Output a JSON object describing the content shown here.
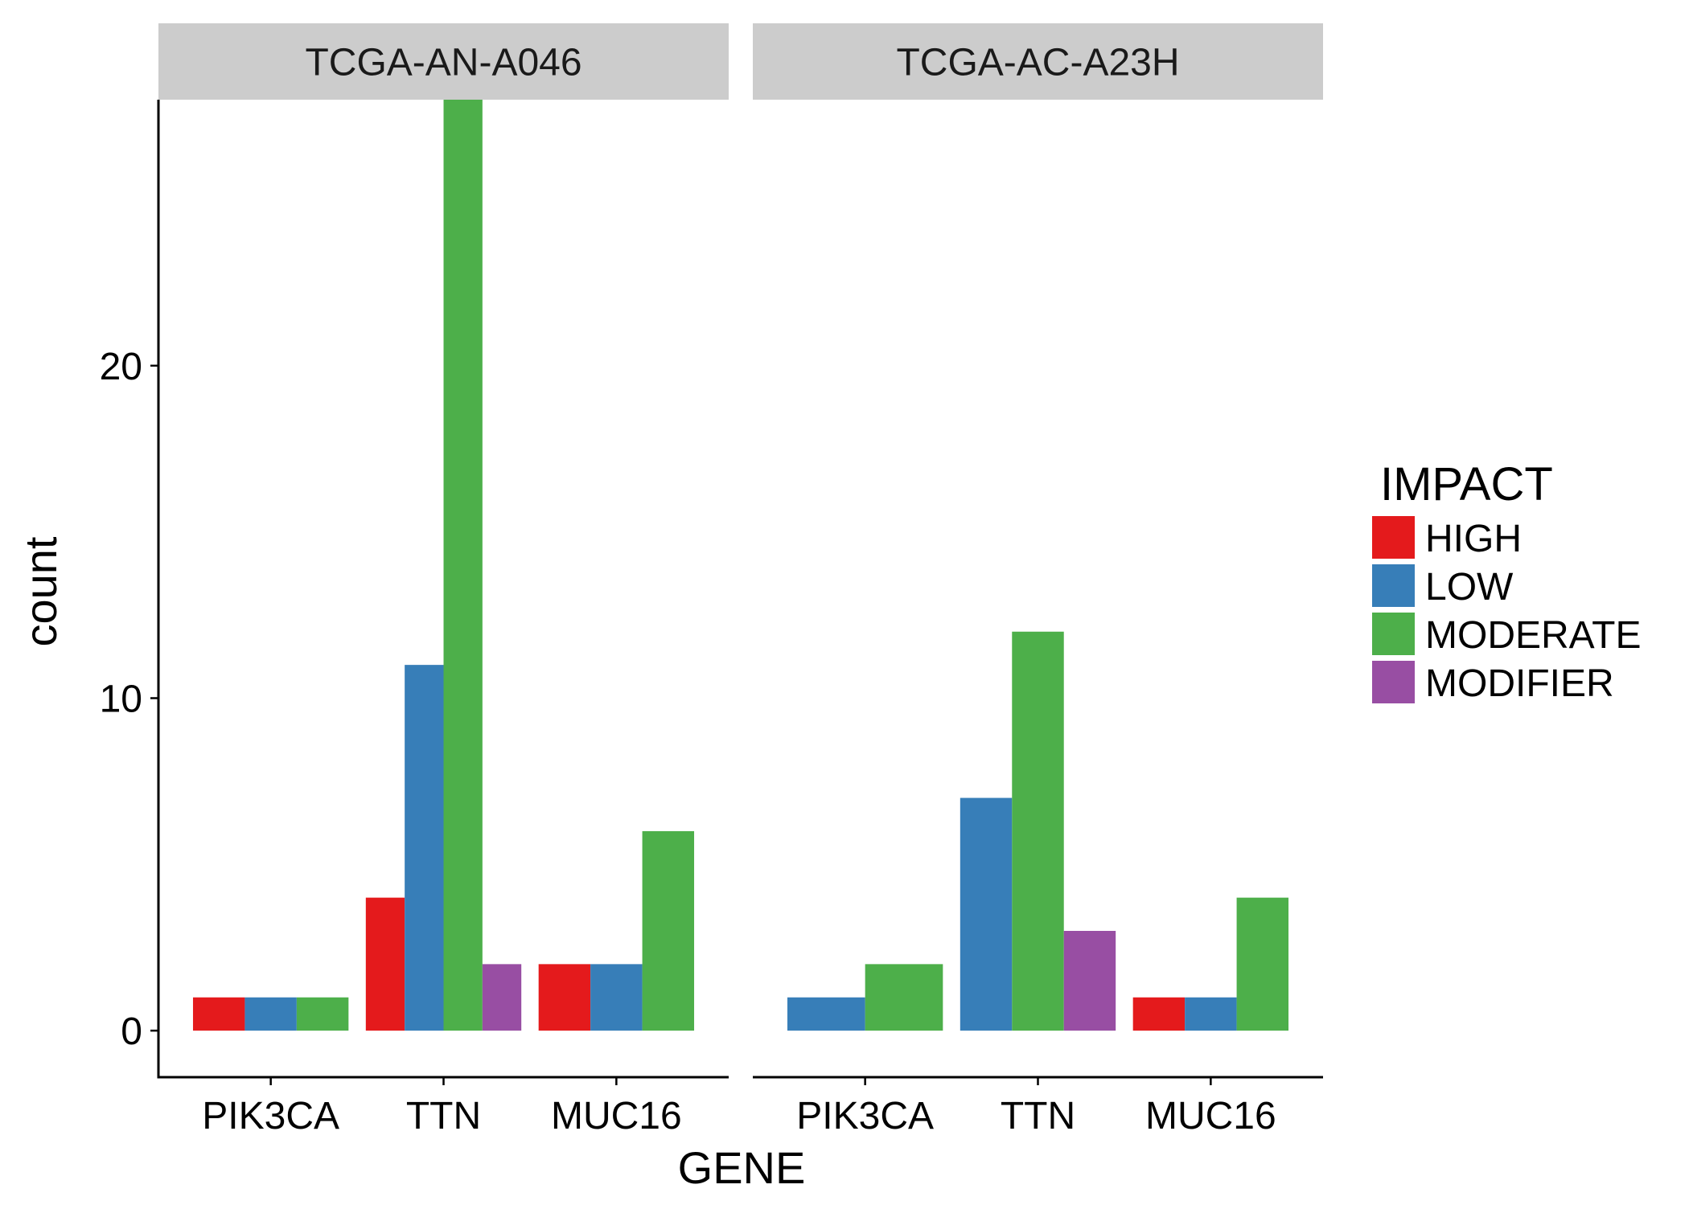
{
  "chart_data": {
    "type": "bar",
    "xlabel": "GENE",
    "ylabel": "count",
    "ylim": [
      -1.4,
      28.0
    ],
    "y_ticks": [
      0,
      10,
      20
    ],
    "categories": [
      "PIK3CA",
      "TTN",
      "MUC16"
    ],
    "legend": {
      "title": "IMPACT",
      "placement": "right",
      "entries": [
        {
          "name": "HIGH",
          "color": "#e41a1c"
        },
        {
          "name": "LOW",
          "color": "#377eb8"
        },
        {
          "name": "MODERATE",
          "color": "#4daf4a"
        },
        {
          "name": "MODIFIER",
          "color": "#984ea3"
        }
      ]
    },
    "panels": [
      {
        "title": "TCGA-AN-A046",
        "groups": [
          {
            "category": "PIK3CA",
            "bars": [
              {
                "impact": "HIGH",
                "value": 1
              },
              {
                "impact": "LOW",
                "value": 1
              },
              {
                "impact": "MODERATE",
                "value": 1
              }
            ]
          },
          {
            "category": "TTN",
            "bars": [
              {
                "impact": "HIGH",
                "value": 4
              },
              {
                "impact": "LOW",
                "value": 11
              },
              {
                "impact": "MODERATE",
                "value": 28
              },
              {
                "impact": "MODIFIER",
                "value": 2
              }
            ]
          },
          {
            "category": "MUC16",
            "bars": [
              {
                "impact": "HIGH",
                "value": 2
              },
              {
                "impact": "LOW",
                "value": 2
              },
              {
                "impact": "MODERATE",
                "value": 6
              }
            ]
          }
        ]
      },
      {
        "title": "TCGA-AC-A23H",
        "groups": [
          {
            "category": "PIK3CA",
            "bars": [
              {
                "impact": "LOW",
                "value": 1
              },
              {
                "impact": "MODERATE",
                "value": 2
              }
            ]
          },
          {
            "category": "TTN",
            "bars": [
              {
                "impact": "LOW",
                "value": 7
              },
              {
                "impact": "MODERATE",
                "value": 12
              },
              {
                "impact": "MODIFIER",
                "value": 3
              }
            ]
          },
          {
            "category": "MUC16",
            "bars": [
              {
                "impact": "HIGH",
                "value": 1
              },
              {
                "impact": "LOW",
                "value": 1
              },
              {
                "impact": "MODERATE",
                "value": 4
              }
            ]
          }
        ]
      }
    ]
  }
}
